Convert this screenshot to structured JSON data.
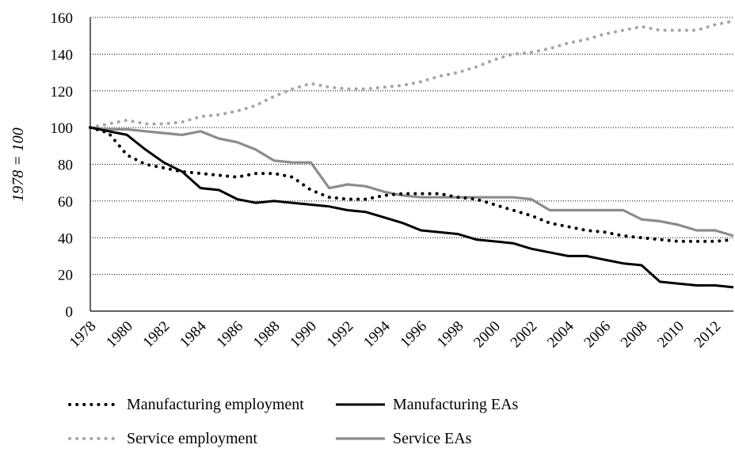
{
  "chart_data": {
    "type": "line",
    "title": "",
    "xlabel": "",
    "ylabel": "1978 = 100",
    "ylim": [
      0,
      160
    ],
    "yticks": [
      0,
      20,
      40,
      60,
      80,
      100,
      120,
      140,
      160
    ],
    "xticks": [
      1978,
      1980,
      1982,
      1984,
      1986,
      1988,
      1990,
      1992,
      1994,
      1996,
      1998,
      2000,
      2002,
      2004,
      2006,
      2008,
      2010,
      2012
    ],
    "xlim": [
      1978,
      2013
    ],
    "grid": "horizontal dotted",
    "legend": "bottom",
    "x": [
      1978,
      1979,
      1980,
      1981,
      1982,
      1983,
      1984,
      1985,
      1986,
      1987,
      1988,
      1989,
      1990,
      1991,
      1992,
      1993,
      1994,
      1995,
      1996,
      1997,
      1998,
      1999,
      2000,
      2001,
      2002,
      2003,
      2004,
      2005,
      2006,
      2007,
      2008,
      2009,
      2010,
      2011,
      2012,
      2013
    ],
    "series": [
      {
        "name": "Manufacturing employment",
        "style": "dotted",
        "color": "#000000",
        "values": [
          100,
          97,
          85,
          80,
          78,
          76,
          75,
          74,
          73,
          75,
          75,
          73,
          66,
          62,
          61,
          61,
          63,
          64,
          64,
          64,
          62,
          61,
          58,
          55,
          52,
          48,
          46,
          44,
          43,
          41,
          40,
          39,
          38,
          38,
          38,
          39
        ]
      },
      {
        "name": "Manufacturing EAs",
        "style": "solid",
        "color": "#000000",
        "values": [
          100,
          98,
          96,
          88,
          81,
          76,
          67,
          66,
          61,
          59,
          60,
          59,
          58,
          57,
          55,
          54,
          51,
          48,
          44,
          43,
          42,
          39,
          38,
          37,
          34,
          32,
          30,
          30,
          28,
          26,
          25,
          16,
          15,
          14,
          14,
          13
        ]
      },
      {
        "name": "Service employment",
        "style": "dotted",
        "color": "#a6a6a6",
        "values": [
          100,
          102,
          104,
          102,
          102,
          103,
          106,
          107,
          109,
          112,
          117,
          121,
          124,
          122,
          121,
          121,
          122,
          123,
          125,
          128,
          130,
          133,
          137,
          140,
          141,
          143,
          146,
          148,
          151,
          153,
          155,
          153,
          153,
          153,
          156,
          158
        ]
      },
      {
        "name": "Service EAs",
        "style": "solid",
        "color": "#8c8c8c",
        "values": [
          100,
          99,
          99,
          98,
          97,
          96,
          98,
          94,
          92,
          88,
          82,
          81,
          81,
          67,
          69,
          68,
          65,
          63,
          62,
          62,
          62,
          62,
          62,
          62,
          61,
          55,
          55,
          55,
          55,
          55,
          50,
          49,
          47,
          44,
          44,
          41
        ]
      }
    ]
  }
}
